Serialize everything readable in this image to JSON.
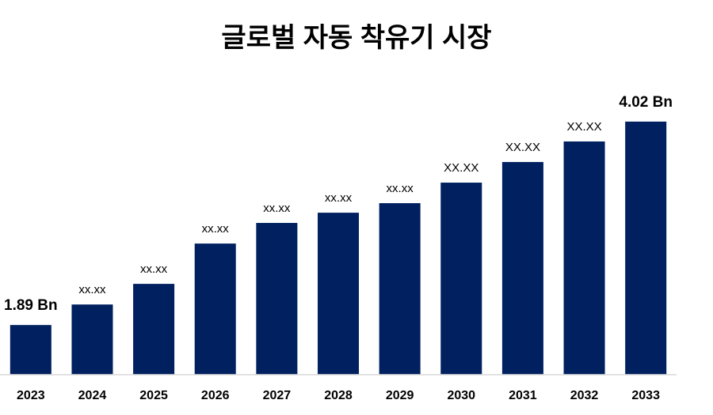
{
  "chart_data": {
    "type": "bar",
    "title": "글로벌 자동 착유기 시장",
    "categories": [
      "2023",
      "2024",
      "2025",
      "2026",
      "2027",
      "2028",
      "2029",
      "2030",
      "2031",
      "2032",
      "2033"
    ],
    "values": [
      1.89,
      2.105,
      2.321,
      2.743,
      2.959,
      3.066,
      3.166,
      3.381,
      3.597,
      3.812,
      4.02
    ],
    "value_labels": [
      "1.89 Bn",
      "xx.xx",
      "xx.xx",
      "xx.xx",
      "xx.xx",
      "xx.xx",
      "xx.xx",
      "XX.XX",
      "XX.XX",
      "XX.XX",
      "4.02 Bn"
    ],
    "color": "#002060",
    "ylim": [
      1.37,
      4.3
    ]
  }
}
